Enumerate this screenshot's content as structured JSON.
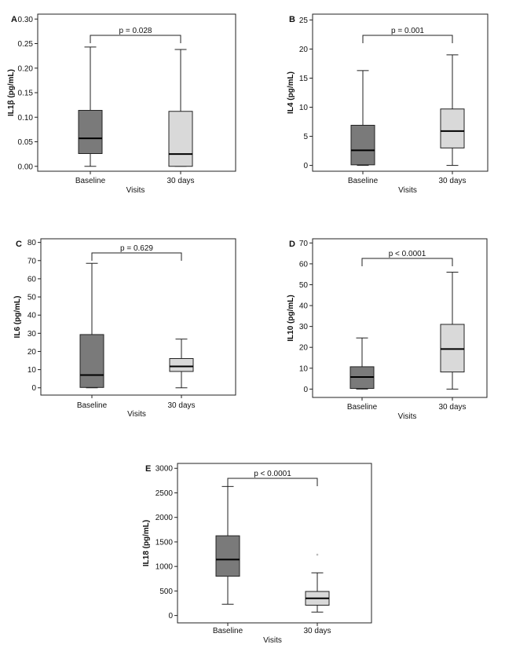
{
  "chart_data": [
    {
      "panel": "A",
      "type": "box",
      "ylabel": "IL1β (pg/mL)",
      "xlabel": "Visits",
      "categories": [
        "Baseline",
        "30 days"
      ],
      "ylim": [
        -0.01,
        0.31
      ],
      "yticks": [
        "0.00",
        "0.05",
        "0.10",
        "0.15",
        "0.20",
        "0.25",
        "0.30"
      ],
      "annotation": "p = 0.028",
      "boxes": [
        {
          "category": "Baseline",
          "min": 0.0,
          "q1": 0.026,
          "median": 0.057,
          "q3": 0.114,
          "max": 0.243,
          "color": "#7a7a7a"
        },
        {
          "category": "30 days",
          "min": 0.0,
          "q1": 0.0,
          "median": 0.025,
          "q3": 0.112,
          "max": 0.238,
          "color": "#d9d9d9"
        }
      ],
      "grid": false
    },
    {
      "panel": "B",
      "type": "box",
      "ylabel": "IL4 (pg/mL)",
      "xlabel": "Visits",
      "categories": [
        "Baseline",
        "30 days"
      ],
      "ylim": [
        -1,
        26
      ],
      "yticks": [
        "0",
        "5",
        "10",
        "15",
        "20",
        "25"
      ],
      "annotation": "p = 0.001",
      "boxes": [
        {
          "category": "Baseline",
          "min": 0,
          "q1": 0.1,
          "median": 2.6,
          "q3": 6.9,
          "max": 16.3,
          "color": "#7a7a7a"
        },
        {
          "category": "30 days",
          "min": 0,
          "q1": 3.0,
          "median": 5.9,
          "q3": 9.7,
          "max": 19.0,
          "color": "#d9d9d9"
        }
      ],
      "grid": false
    },
    {
      "panel": "C",
      "type": "box",
      "ylabel": "IL6 (pg/mL)",
      "xlabel": "Visits",
      "categories": [
        "Baseline",
        "30 days"
      ],
      "ylim": [
        -4,
        82
      ],
      "yticks": [
        "0",
        "10",
        "20",
        "30",
        "40",
        "50",
        "60",
        "70",
        "80"
      ],
      "annotation": "p = 0.629",
      "boxes": [
        {
          "category": "Baseline",
          "min": 0,
          "q1": 0.2,
          "median": 7,
          "q3": 29.3,
          "max": 68.5,
          "color": "#7a7a7a"
        },
        {
          "category": "30 days",
          "min": 0,
          "q1": 9,
          "median": 11.8,
          "q3": 16.1,
          "max": 26.8,
          "color": "#d9d9d9"
        }
      ],
      "grid": false
    },
    {
      "panel": "D",
      "type": "box",
      "ylabel": "IL10 (pg/mL)",
      "xlabel": "Visits",
      "categories": [
        "Baseline",
        "30 days"
      ],
      "ylim": [
        -4,
        72
      ],
      "yticks": [
        "0",
        "10",
        "20",
        "30",
        "40",
        "50",
        "60",
        "70"
      ],
      "annotation": "p < 0.0001",
      "boxes": [
        {
          "category": "Baseline",
          "min": 0,
          "q1": 0.3,
          "median": 5.8,
          "q3": 10.7,
          "max": 24.5,
          "color": "#7a7a7a"
        },
        {
          "category": "30 days",
          "min": 0,
          "q1": 8.2,
          "median": 19.2,
          "q3": 31.0,
          "max": 56.0,
          "color": "#d9d9d9"
        }
      ],
      "grid": false
    },
    {
      "panel": "E",
      "type": "box",
      "ylabel": "IL18 (pg/mL)",
      "xlabel": "Visits",
      "categories": [
        "Baseline",
        "30 days"
      ],
      "ylim": [
        -150,
        3100
      ],
      "yticks": [
        "0",
        "500",
        "1000",
        "1500",
        "2000",
        "2500",
        "3000"
      ],
      "annotation": "p < 0.0001",
      "boxes": [
        {
          "category": "Baseline",
          "min": 230,
          "q1": 800,
          "median": 1140,
          "q3": 1625,
          "max": 2630,
          "color": "#7a7a7a"
        },
        {
          "category": "30 days",
          "min": 70,
          "q1": 210,
          "median": 350,
          "q3": 490,
          "max": 870,
          "outliers": [
            1240
          ],
          "color": "#d9d9d9"
        }
      ],
      "grid": false
    }
  ]
}
